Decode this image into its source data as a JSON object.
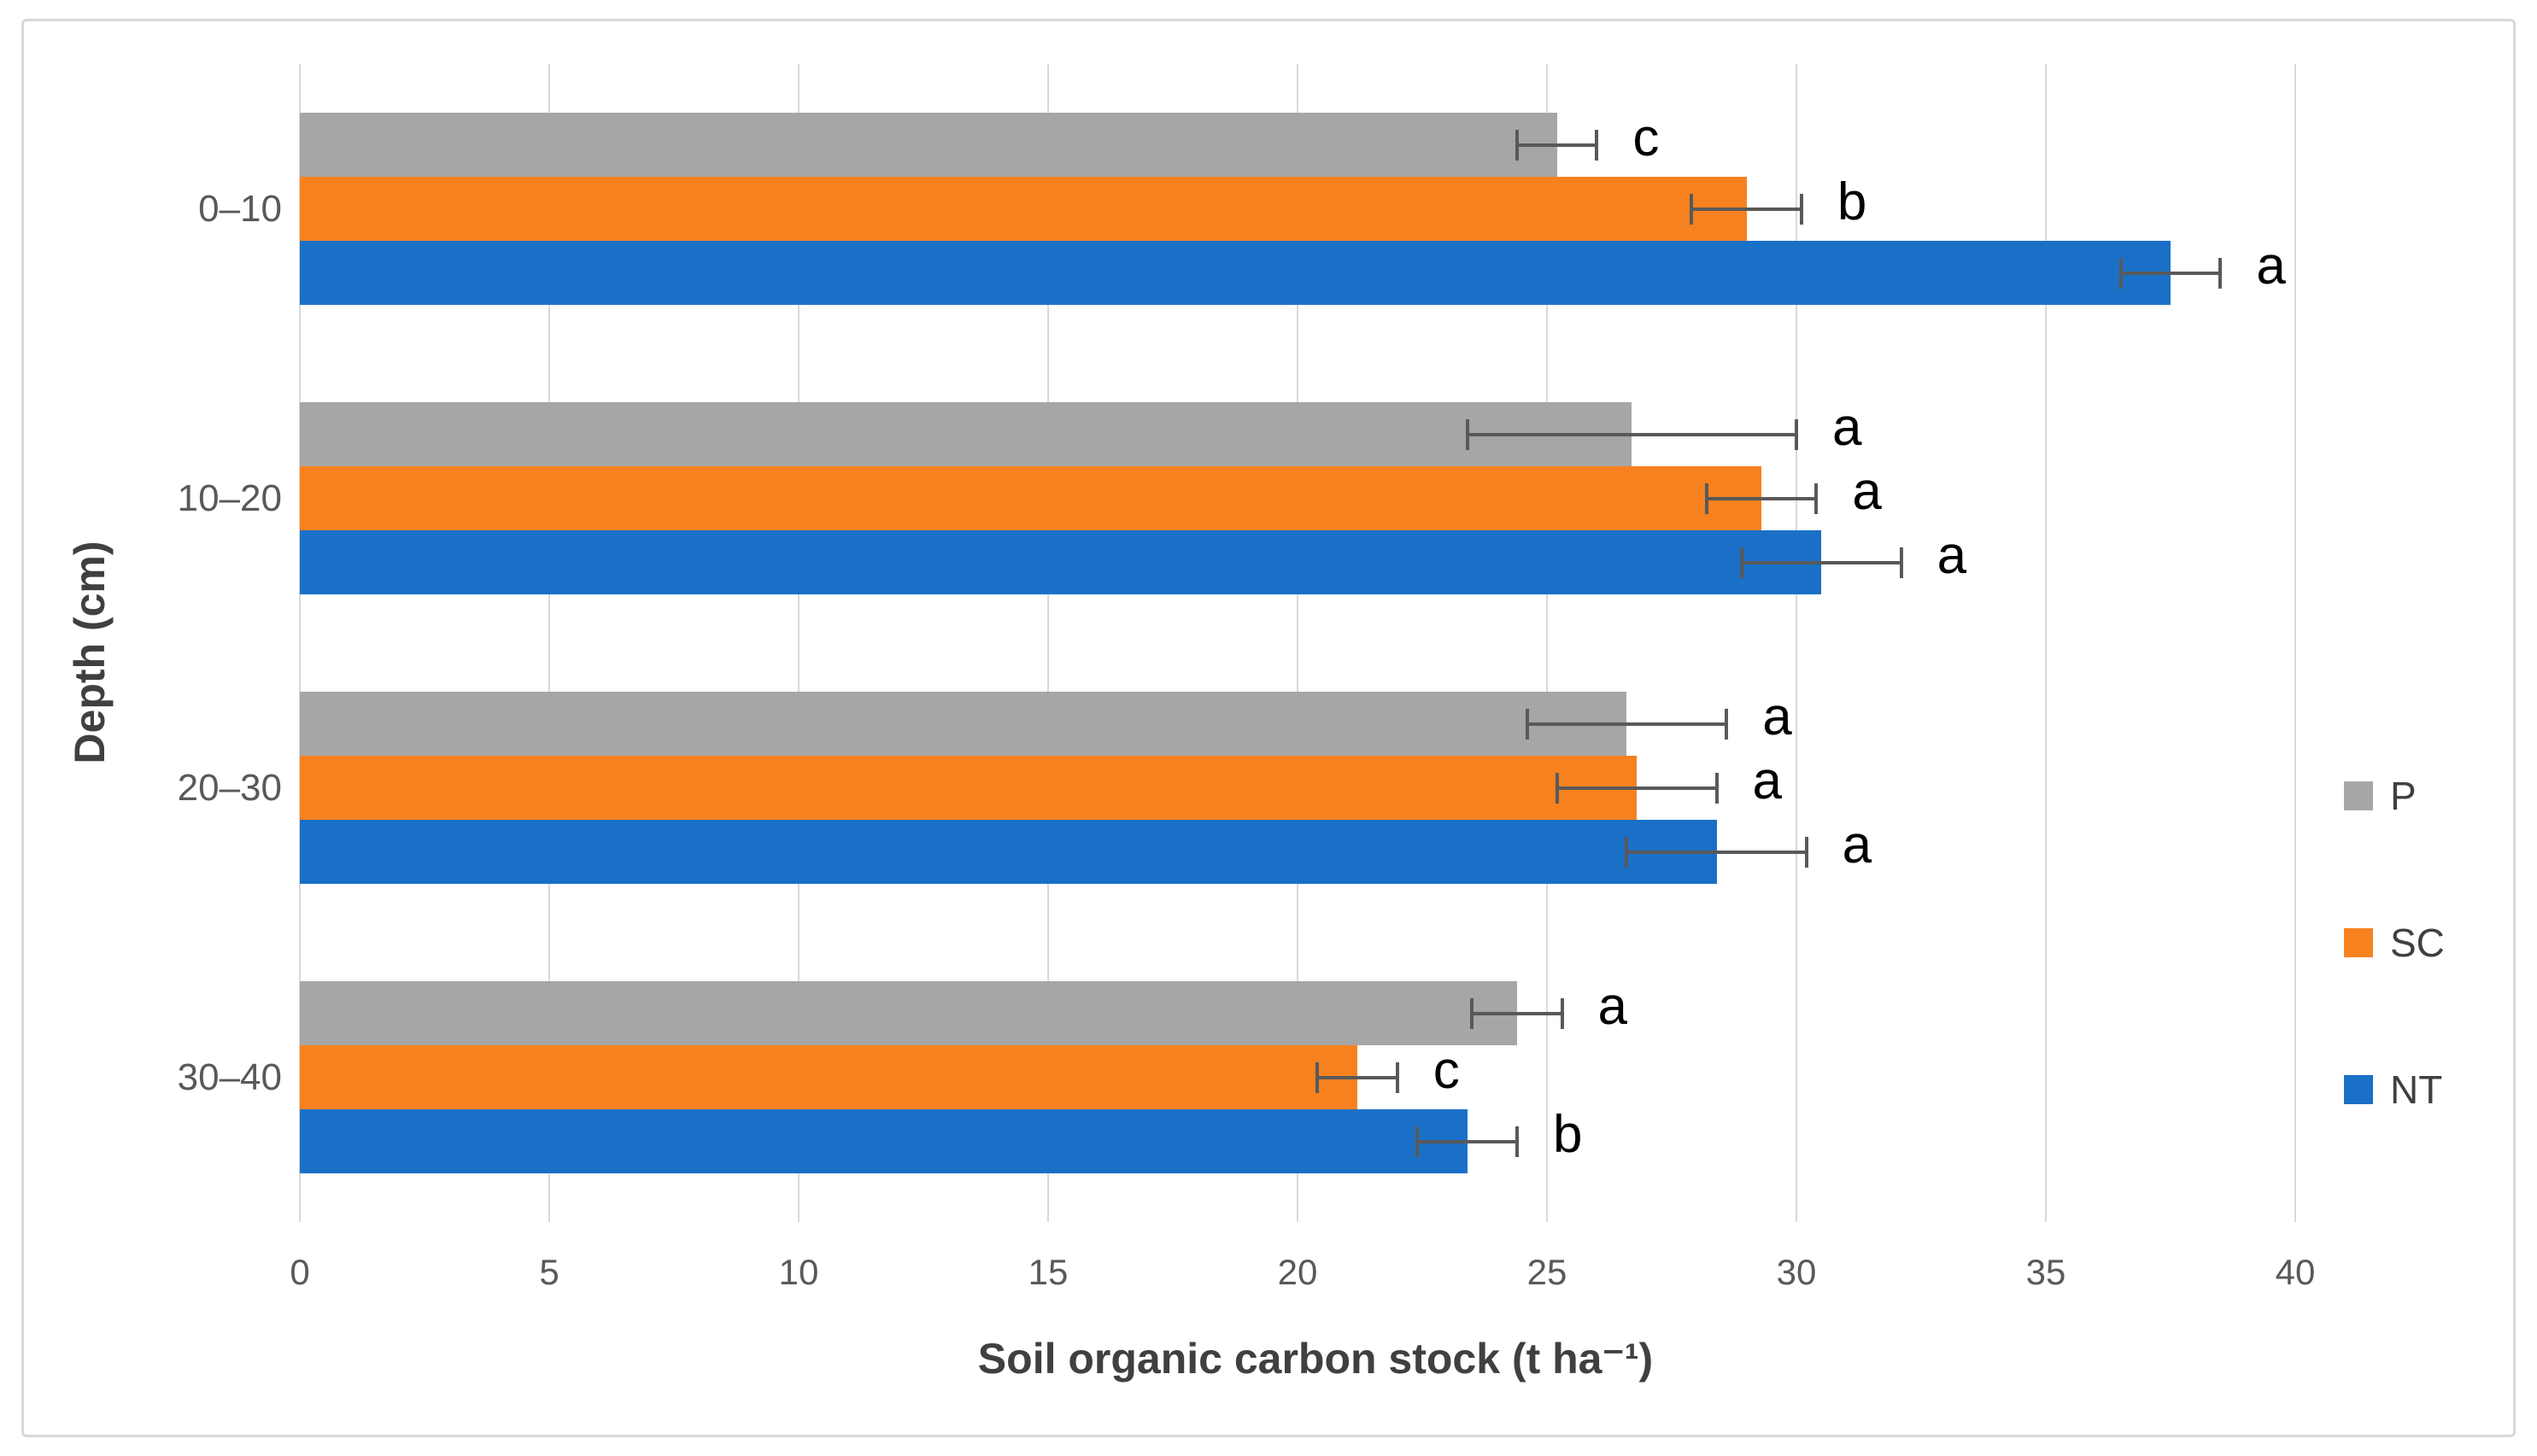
{
  "chart_data": {
    "type": "bar",
    "orientation": "horizontal",
    "title": "",
    "xlabel": "Soil organic carbon stock (t ha⁻¹)",
    "ylabel": "Depth (cm)",
    "categories": [
      "0–10",
      "10–20",
      "20–30",
      "30–40"
    ],
    "xlim": [
      0,
      40
    ],
    "xticks": [
      0,
      5,
      10,
      15,
      20,
      25,
      30,
      35,
      40
    ],
    "grid": "vertical",
    "legend_position": "right",
    "bar_order_top_to_bottom": [
      "P",
      "SC",
      "NT"
    ],
    "series": [
      {
        "name": "P",
        "color": "#A6A6A6",
        "values": [
          25.2,
          26.7,
          26.6,
          24.4
        ],
        "errors": [
          0.8,
          3.3,
          2.0,
          0.9
        ],
        "letters": [
          "c",
          "a",
          "a",
          "a"
        ]
      },
      {
        "name": "SC",
        "color": "#F8811F",
        "values": [
          29.0,
          29.3,
          26.8,
          21.2
        ],
        "errors": [
          1.1,
          1.1,
          1.6,
          0.8
        ],
        "letters": [
          "b",
          "a",
          "a",
          "c"
        ]
      },
      {
        "name": "NT",
        "color": "#1A70C7",
        "values": [
          37.5,
          30.5,
          28.4,
          23.4
        ],
        "errors": [
          1.0,
          1.6,
          1.8,
          1.0
        ],
        "letters": [
          "a",
          "a",
          "a",
          "b"
        ]
      }
    ],
    "legend": [
      {
        "label": "P",
        "color": "#A6A6A6"
      },
      {
        "label": "SC",
        "color": "#F8811F"
      },
      {
        "label": "NT",
        "color": "#1A70C7"
      }
    ]
  },
  "colors": {
    "grid": "#D9D9D9",
    "axis_text": "#595959",
    "axis_title": "#404040",
    "error_bar": "#595959",
    "letter": "#000000",
    "figure_border": "#D8D8D8",
    "background": "#FFFFFF"
  }
}
